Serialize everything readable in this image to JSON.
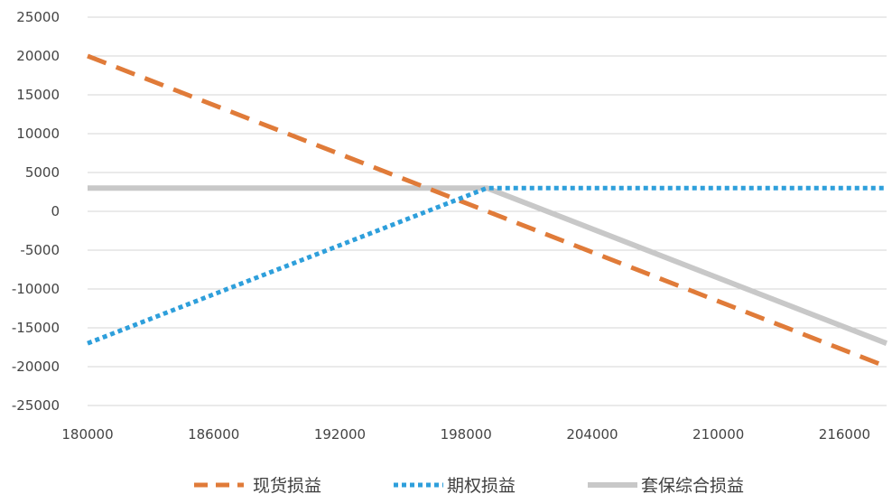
{
  "chart_data": {
    "type": "line",
    "title": "",
    "xlabel": "",
    "ylabel": "",
    "xlim": [
      180000,
      218000
    ],
    "ylim": [
      -25000,
      25000
    ],
    "x_ticks": [
      "180000",
      "186000",
      "192000",
      "198000",
      "204000",
      "210000",
      "216000"
    ],
    "y_ticks": [
      "25000",
      "20000",
      "15000",
      "10000",
      "5000",
      "0",
      "-5000",
      "-10000",
      "-15000",
      "-20000",
      "-25000"
    ],
    "grid": "horizontal",
    "legend_position": "bottom",
    "series": [
      {
        "name": "现货损益",
        "style": "dashed",
        "color": "#E07B39",
        "points": [
          [
            180000,
            20000
          ],
          [
            218000,
            -20000
          ]
        ]
      },
      {
        "name": "期权损益",
        "style": "dotted",
        "color": "#2E9FDB",
        "points": [
          [
            180000,
            -17000
          ],
          [
            199000,
            3000
          ],
          [
            218000,
            3000
          ]
        ]
      },
      {
        "name": "套保综合损益",
        "style": "solid",
        "color": "#C8C8C8",
        "points": [
          [
            180000,
            3000
          ],
          [
            199000,
            3000
          ],
          [
            218000,
            -17000
          ]
        ]
      }
    ]
  }
}
